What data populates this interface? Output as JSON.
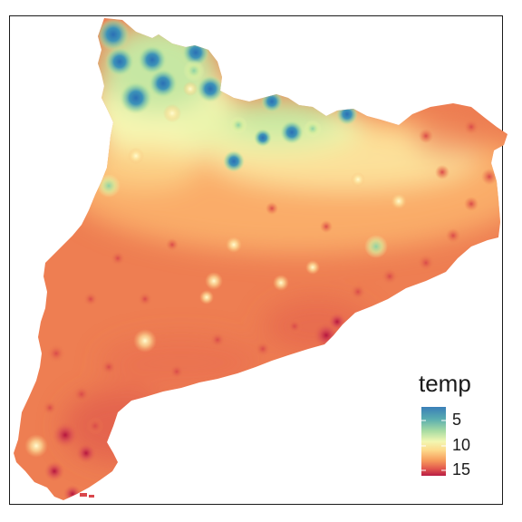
{
  "legend": {
    "title": "temp",
    "ticks": [
      {
        "label": "5",
        "value": 5
      },
      {
        "label": "10",
        "value": 10
      },
      {
        "label": "15",
        "value": 15
      }
    ],
    "range": [
      3.5,
      16.5
    ],
    "palette": [
      "#9e0142",
      "#d53e4f",
      "#f46d43",
      "#fdae61",
      "#fee08b",
      "#ffffbf",
      "#e6f598",
      "#abdda4",
      "#66c2a5",
      "#3288bd",
      "#5e4fa2"
    ]
  },
  "colors": {
    "warm_base": "#ee7e52",
    "mid_base": "#fbb46d",
    "cool_base": "#eef5a8",
    "frame": "#1a1a1a"
  }
}
